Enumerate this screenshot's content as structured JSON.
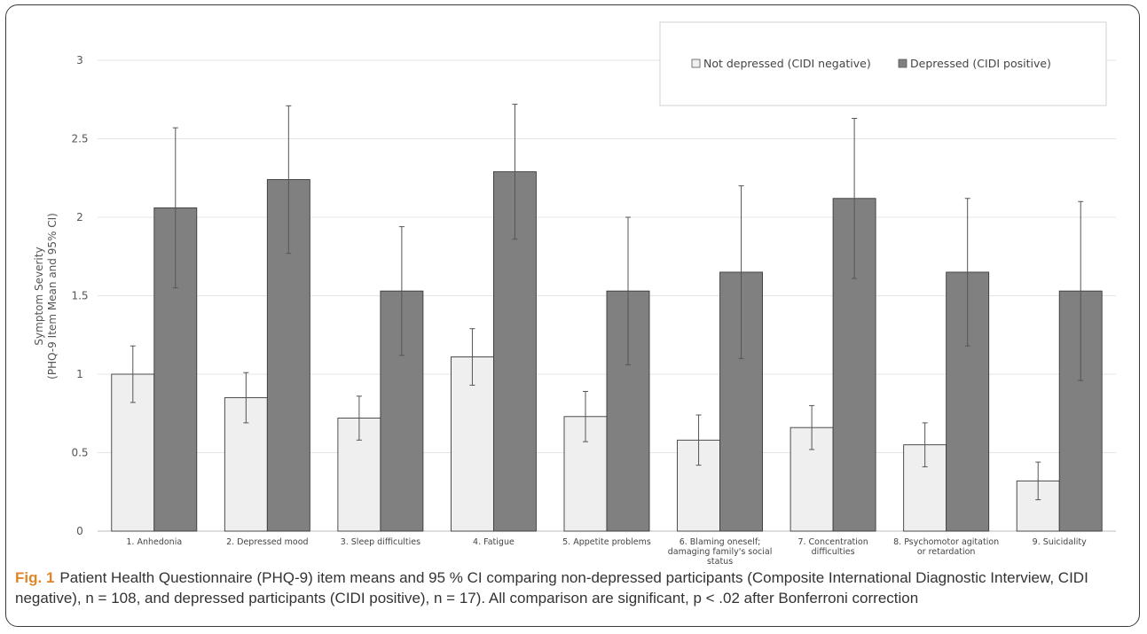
{
  "chart_data": {
    "type": "bar",
    "ylabel_line1": "Symptom Severity",
    "ylabel_line2": "(PHQ-9 Item Mean and 95% CI)",
    "xlabel": "",
    "ylim": [
      0,
      3
    ],
    "yticks": [
      "0",
      "0.5",
      "1",
      "1.5",
      "2",
      "2.5",
      "3"
    ],
    "ytick_values": [
      0,
      0.5,
      1,
      1.5,
      2,
      2.5,
      3
    ],
    "grid": true,
    "legend_placement": "top-right",
    "categories": [
      [
        "1. Anhedonia"
      ],
      [
        "2. Depressed mood"
      ],
      [
        "3. Sleep difficulties"
      ],
      [
        "4. Fatigue"
      ],
      [
        "5. Appetite problems"
      ],
      [
        "6. Blaming oneself;",
        "damaging family's social",
        "status"
      ],
      [
        "7. Concentration",
        "difficulties"
      ],
      [
        "8. Psychomotor agitation",
        "or retardation"
      ],
      [
        "9. Suicidality"
      ]
    ],
    "series": [
      {
        "name": "Not depressed (CIDI negative)",
        "color": "#efefef",
        "values": [
          1.0,
          0.85,
          0.72,
          1.11,
          0.73,
          0.58,
          0.66,
          0.55,
          0.32
        ],
        "ci_low": [
          0.82,
          0.69,
          0.58,
          0.93,
          0.57,
          0.42,
          0.52,
          0.41,
          0.2
        ],
        "ci_high": [
          1.18,
          1.01,
          0.86,
          1.29,
          0.89,
          0.74,
          0.8,
          0.69,
          0.44
        ]
      },
      {
        "name": "Depressed (CIDI positive)",
        "color": "#808080",
        "values": [
          2.06,
          2.24,
          1.53,
          2.29,
          1.53,
          1.65,
          2.12,
          1.65,
          1.53
        ],
        "ci_low": [
          1.55,
          1.77,
          1.12,
          1.86,
          1.06,
          1.1,
          1.61,
          1.18,
          0.96
        ],
        "ci_high": [
          2.57,
          2.71,
          1.94,
          2.72,
          2.0,
          2.2,
          2.63,
          2.12,
          2.1
        ]
      }
    ]
  },
  "caption": {
    "label": "Fig. 1",
    "text": "Patient Health Questionnaire (PHQ-9) item means and 95 % CI comparing non-depressed participants (Composite International Diagnostic Interview, CIDI negative), n = 108, and depressed participants (CIDI positive), n = 17). All comparison are significant, p < .02 after Bonferroni correction"
  }
}
